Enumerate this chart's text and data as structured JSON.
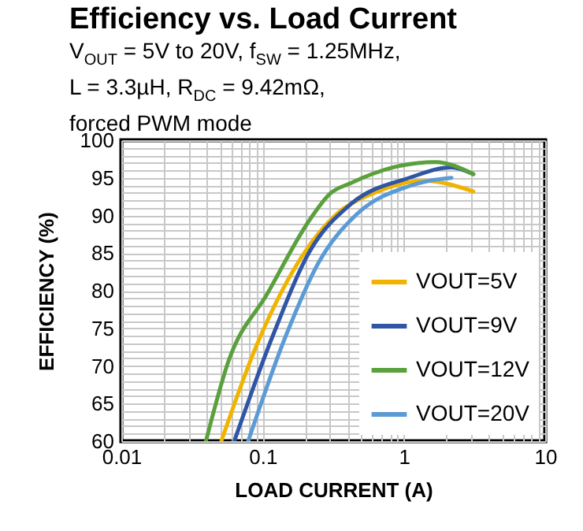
{
  "chart_data": {
    "type": "line",
    "title": "Efficiency vs. Load Current",
    "subtitle": "V$_{OUT}$ = 5V to 20V, f$_{SW}$ = 1.25MHz,\nL = 3.3µH, R$_{DC}$ = 9.42mΩ,\nforced PWM mode",
    "xlabel": "LOAD CURRENT (A)",
    "ylabel": "EFFICIENCY (%)",
    "log": "x",
    "xlim": [
      0.01,
      10
    ],
    "ylim": [
      60,
      100
    ],
    "xticks": [
      0.01,
      {
        "value": 0.02,
        "label": null
      },
      {
        "value": 0.03,
        "label": null
      },
      {
        "value": 0.04,
        "label": null
      },
      {
        "value": 0.05,
        "label": null
      },
      {
        "value": 0.06,
        "label": null
      },
      {
        "value": 0.07,
        "label": null
      },
      {
        "value": 0.08,
        "label": null
      },
      {
        "value": 0.09,
        "label": null
      },
      0.1,
      {
        "value": 0.2,
        "label": null
      },
      {
        "value": 0.3,
        "label": null
      },
      {
        "value": 0.4,
        "label": null
      },
      {
        "value": 0.5,
        "label": null
      },
      {
        "value": 0.6,
        "label": null
      },
      {
        "value": 0.7,
        "label": null
      },
      {
        "value": 0.8,
        "label": null
      },
      {
        "value": 0.9,
        "label": null
      },
      1,
      {
        "value": 2,
        "label": null
      },
      {
        "value": 3,
        "label": null
      },
      {
        "value": 4,
        "label": null
      },
      {
        "value": 5,
        "label": null
      },
      {
        "value": 6,
        "label": null
      },
      {
        "value": 7,
        "label": null
      },
      {
        "value": 8,
        "label": null
      },
      {
        "value": 9,
        "label": null
      },
      10
    ],
    "yticks": [
      60,
      {
        "value": 61,
        "label": null
      },
      {
        "value": 62,
        "label": null
      },
      {
        "value": 63,
        "label": null
      },
      {
        "value": 64,
        "label": null
      },
      65,
      {
        "value": 66,
        "label": null
      },
      {
        "value": 67,
        "label": null
      },
      {
        "value": 68,
        "label": null
      },
      {
        "value": 69,
        "label": null
      },
      70,
      {
        "value": 71,
        "label": null
      },
      {
        "value": 72,
        "label": null
      },
      {
        "value": 73,
        "label": null
      },
      {
        "value": 74,
        "label": null
      },
      75,
      {
        "value": 76,
        "label": null
      },
      {
        "value": 77,
        "label": null
      },
      {
        "value": 78,
        "label": null
      },
      {
        "value": 79,
        "label": null
      },
      80,
      {
        "value": 81,
        "label": null
      },
      {
        "value": 82,
        "label": null
      },
      {
        "value": 83,
        "label": null
      },
      {
        "value": 84,
        "label": null
      },
      85,
      {
        "value": 86,
        "label": null
      },
      {
        "value": 87,
        "label": null
      },
      {
        "value": 88,
        "label": null
      },
      {
        "value": 89,
        "label": null
      },
      90,
      {
        "value": 91,
        "label": null
      },
      {
        "value": 92,
        "label": null
      },
      {
        "value": 93,
        "label": null
      },
      {
        "value": 94,
        "label": null
      },
      95,
      {
        "value": 96,
        "label": null
      },
      {
        "value": 97,
        "label": null
      },
      {
        "value": 98,
        "label": null
      },
      {
        "value": 99,
        "label": null
      },
      100
    ],
    "grid": true,
    "legend": "bottom right",
    "series": [
      {
        "name": "VOUT=5V",
        "color": "#f0b400",
        "x": [
          0.051,
          0.09,
          0.2,
          0.33,
          0.6,
          1.4,
          3.1
        ],
        "values": [
          60,
          72.6,
          85.2,
          90.1,
          92.9,
          94.6,
          93.2
        ]
      },
      {
        "name": "VOUT=9V",
        "color": "#2f55a4",
        "x": [
          0.063,
          0.118,
          0.215,
          0.42,
          1.09,
          2.17,
          3.1
        ],
        "values": [
          60,
          74,
          85.2,
          91.5,
          95,
          96.4,
          95.5
        ]
      },
      {
        "name": "VOUT=12V",
        "color": "#5aa03c",
        "x": [
          0.0397,
          0.057,
          0.108,
          0.215,
          0.3,
          0.42,
          0.84,
          1.67,
          3.1
        ],
        "values": [
          60,
          70.5,
          79.6,
          89.4,
          92.9,
          94.3,
          96.4,
          97.1,
          95.5
        ]
      },
      {
        "name": "VOUT=20V",
        "color": "#5b9bd5",
        "x": [
          0.079,
          0.146,
          0.25,
          0.46,
          1.09,
          1.5,
          2.17
        ],
        "values": [
          60,
          74,
          83.8,
          90.1,
          93.9,
          94.6,
          95
        ]
      }
    ]
  }
}
